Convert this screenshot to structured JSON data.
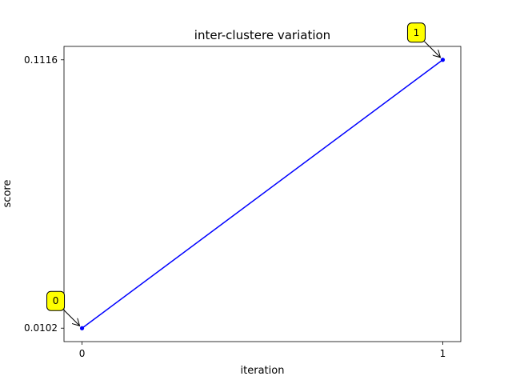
{
  "chart_data": {
    "type": "line",
    "title": "inter-clustere variation",
    "xlabel": "iteration",
    "ylabel": "score",
    "x": [
      0,
      1
    ],
    "xticks": [
      "0",
      "1"
    ],
    "yticks": [
      "0.0102",
      "0.1116"
    ],
    "xlim": [
      -0.05,
      1.05
    ],
    "ylim": [
      0.00513,
      0.11667
    ],
    "grid": false,
    "series": [
      {
        "values": [
          0.0102,
          0.1116
        ],
        "color": "#0000ff",
        "marker": "circle"
      }
    ],
    "annotations": [
      {
        "text": "0",
        "x": 0,
        "y": 0.0102
      },
      {
        "text": "1",
        "x": 1,
        "y": 0.1116
      }
    ],
    "annotation_style": {
      "fill": "#ffff00",
      "border": "#000000"
    }
  }
}
